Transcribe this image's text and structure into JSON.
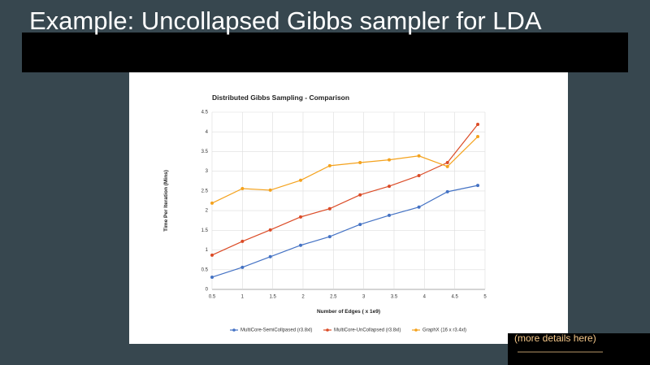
{
  "slide": {
    "title": "Example: Uncollapsed Gibbs sampler for LDA",
    "link": "(more details here)"
  },
  "chart_data": {
    "type": "line",
    "title": "Distributed Gibbs Sampling - Comparison",
    "x_label": "Number of Edges ( x 1e9)",
    "y_label": "Time Per Iteration (Mins)",
    "x": [
      0.5,
      1.0,
      1.46,
      1.96,
      2.44,
      2.94,
      3.42,
      3.91,
      4.38,
      4.88
    ],
    "series": [
      {
        "name": "MultiCore-SemiCollpased (r3.8xl)",
        "color": "#4472c4",
        "values": [
          0.31,
          0.56,
          0.83,
          1.12,
          1.34,
          1.65,
          1.88,
          2.09,
          2.48,
          2.64
        ]
      },
      {
        "name": "MultiCore-UnCollapsed (r3.8xl)",
        "color": "#db4b26",
        "values": [
          0.87,
          1.22,
          1.51,
          1.84,
          2.05,
          2.4,
          2.62,
          2.89,
          3.22,
          4.19
        ]
      },
      {
        "name": "GraphX (16 x r3.4xl)",
        "color": "#f4a21d",
        "values": [
          2.19,
          2.56,
          2.52,
          2.77,
          3.14,
          3.22,
          3.29,
          3.39,
          3.12,
          3.88
        ]
      }
    ],
    "xlim": [
      0.5,
      5
    ],
    "xticks": [
      0.5,
      1,
      1.5,
      2,
      2.5,
      3,
      3.5,
      4,
      4.5,
      5
    ],
    "ylim": [
      0,
      4.5
    ],
    "yticks": [
      0,
      0.5,
      1,
      1.5,
      2,
      2.5,
      3,
      3.5,
      4,
      4.5
    ],
    "grid": true,
    "legend": "bottom"
  }
}
